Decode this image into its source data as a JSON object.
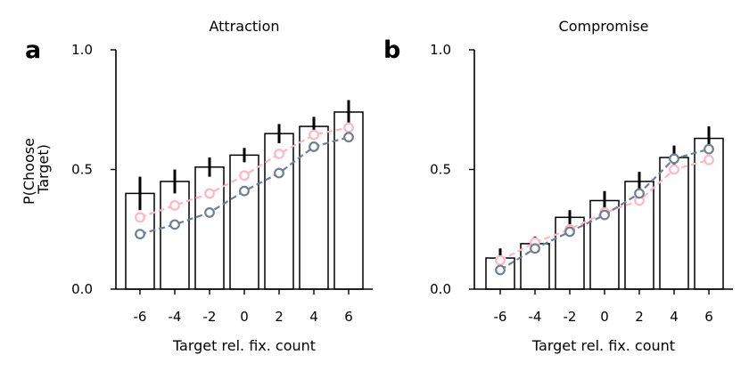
{
  "chart_data": [
    {
      "type": "bar",
      "panel_label": "a",
      "title": "Attraction",
      "xlabel": "Target rel. fix. count",
      "ylabel": "P(Choose\nTarget)",
      "ylabel_lines": [
        "P(Choose",
        "Target)"
      ],
      "x": [
        -6,
        -4,
        -2,
        0,
        2,
        4,
        6
      ],
      "xtick_labels": [
        "-6",
        "-4",
        "-2",
        "0",
        "2",
        "4",
        "6"
      ],
      "ytick_labels": [
        "0.0",
        "0.5",
        "1.0"
      ],
      "ylim": [
        0.0,
        1.0
      ],
      "grid": false,
      "bars": {
        "values": [
          0.4,
          0.45,
          0.51,
          0.56,
          0.65,
          0.68,
          0.74
        ],
        "error": [
          0.07,
          0.05,
          0.04,
          0.03,
          0.04,
          0.04,
          0.05
        ],
        "fill": "#ffffff",
        "edge": "#000000"
      },
      "series": [
        {
          "type": "line",
          "style": "dashed-open-circles",
          "color": "#ffb6c1",
          "values": [
            0.3,
            0.35,
            0.4,
            0.475,
            0.565,
            0.645,
            0.675
          ]
        },
        {
          "type": "line",
          "style": "dashed-open-circles",
          "color": "#708090",
          "values": [
            0.23,
            0.27,
            0.32,
            0.41,
            0.485,
            0.595,
            0.635
          ]
        }
      ]
    },
    {
      "type": "bar",
      "panel_label": "b",
      "title": "Compromise",
      "xlabel": "Target rel. fix. count",
      "ylabel": "",
      "ylabel_lines": [],
      "x": [
        -6,
        -4,
        -2,
        0,
        2,
        4,
        6
      ],
      "xtick_labels": [
        "-6",
        "-4",
        "-2",
        "0",
        "2",
        "4",
        "6"
      ],
      "ytick_labels": [
        "0.0",
        "0.5",
        "1.0"
      ],
      "ylim": [
        0.0,
        1.0
      ],
      "grid": false,
      "bars": {
        "values": [
          0.13,
          0.19,
          0.3,
          0.37,
          0.45,
          0.55,
          0.63
        ],
        "error": [
          0.04,
          0.03,
          0.03,
          0.04,
          0.04,
          0.05,
          0.05
        ],
        "fill": "#ffffff",
        "edge": "#000000"
      },
      "series": [
        {
          "type": "line",
          "style": "dashed-open-circles",
          "color": "#ffb6c1",
          "values": [
            0.12,
            0.195,
            0.25,
            0.32,
            0.37,
            0.5,
            0.54
          ]
        },
        {
          "type": "line",
          "style": "dashed-open-circles",
          "color": "#708090",
          "values": [
            0.08,
            0.17,
            0.24,
            0.31,
            0.4,
            0.545,
            0.585
          ]
        }
      ]
    }
  ]
}
